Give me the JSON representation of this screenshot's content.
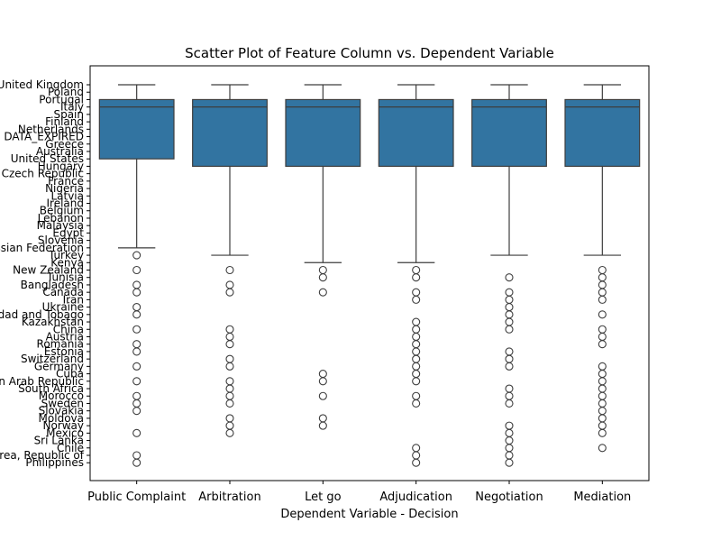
{
  "chart_data": {
    "type": "box",
    "title": "Scatter Plot of Feature Column vs. Dependent Variable",
    "xlabel": "Dependent Variable - Decision",
    "ylabel": "",
    "grid": false,
    "legend": "none",
    "box_color": "#3274a1",
    "line_color": "#3d3d3d",
    "categories": [
      "Public Complaint",
      "Arbitration",
      "Let go",
      "Adjudication",
      "Negotiation",
      "Mediation"
    ],
    "y_categories": [
      "United Kingdom",
      "Poland",
      "Portugal",
      "Italy",
      "Spain",
      "Finland",
      "Netherlands",
      "DATA_EXPIRED",
      "Greece",
      "Australia",
      "United States",
      "Hungary",
      "Czech Republic",
      "France",
      "Nigeria",
      "Latvia",
      "Ireland",
      "Belgium",
      "Lebanon",
      "Malaysia",
      "Egypt",
      "Slovenia",
      "Russian Federation",
      "Turkey",
      "Kenya",
      "New Zealand",
      "Tunisia",
      "Bangladesh",
      "Canada",
      "Iran",
      "Ukraine",
      "Trinidad and Tobago",
      "Kazakhstan",
      "China",
      "Austria",
      "Romania",
      "Estonia",
      "Switzerland",
      "Germany",
      "Cuba",
      "Syrian Arab Republic",
      "South Africa",
      "Morocco",
      "Sweden",
      "Slovakia",
      "Moldova",
      "Norway",
      "Mexico",
      "Sri Lanka",
      "Chile",
      "Korea, Republic of",
      "Philippines"
    ],
    "series": [
      {
        "category": "Public Complaint",
        "whisker_low": 0,
        "q1": 2,
        "median": 3,
        "q3": 10,
        "whisker_high": 22,
        "outliers": [
          23,
          25,
          27,
          28,
          30,
          31,
          33,
          35,
          36,
          38,
          40,
          42,
          43,
          44,
          47,
          50,
          51
        ]
      },
      {
        "category": "Arbitration",
        "whisker_low": 0,
        "q1": 2,
        "median": 3,
        "q3": 11,
        "whisker_high": 23,
        "outliers": [
          25,
          27,
          28,
          33,
          34,
          35,
          37,
          38,
          40,
          41,
          42,
          43,
          45,
          46,
          47
        ]
      },
      {
        "category": "Let go",
        "whisker_low": 0,
        "q1": 2,
        "median": 3,
        "q3": 11,
        "whisker_high": 24,
        "outliers": [
          25,
          26,
          28,
          39,
          40,
          42,
          45,
          46
        ]
      },
      {
        "category": "Adjudication",
        "whisker_low": 0,
        "q1": 2,
        "median": 3,
        "q3": 11,
        "whisker_high": 24,
        "outliers": [
          25,
          26,
          28,
          29,
          32,
          33,
          34,
          35,
          36,
          37,
          38,
          39,
          40,
          42,
          43,
          49,
          50,
          51
        ]
      },
      {
        "category": "Negotiation",
        "whisker_low": 0,
        "q1": 2,
        "median": 3,
        "q3": 11,
        "whisker_high": 23,
        "outliers": [
          26,
          28,
          29,
          30,
          31,
          32,
          33,
          36,
          37,
          38,
          41,
          42,
          43,
          46,
          47,
          48,
          49,
          50,
          51
        ]
      },
      {
        "category": "Mediation",
        "whisker_low": 0,
        "q1": 2,
        "median": 3,
        "q3": 11,
        "whisker_high": 23,
        "outliers": [
          25,
          26,
          27,
          28,
          29,
          31,
          33,
          34,
          35,
          38,
          39,
          40,
          41,
          42,
          43,
          44,
          45,
          46,
          47,
          49
        ]
      }
    ]
  }
}
